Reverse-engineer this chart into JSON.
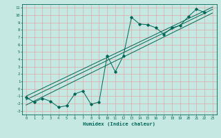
{
  "xlabel": "Humidex (Indice chaleur)",
  "bg_color": "#c5e8e3",
  "grid_color": "#dfa8a8",
  "line_color": "#006655",
  "xlim": [
    -0.5,
    23.5
  ],
  "ylim": [
    -3.5,
    11.5
  ],
  "xticks": [
    0,
    1,
    2,
    3,
    4,
    5,
    6,
    7,
    8,
    9,
    10,
    11,
    12,
    13,
    14,
    15,
    16,
    17,
    18,
    19,
    20,
    21,
    22,
    23
  ],
  "yticks": [
    -3,
    -2,
    -1,
    0,
    1,
    2,
    3,
    4,
    5,
    6,
    7,
    8,
    9,
    10,
    11
  ],
  "data_x": [
    0,
    1,
    2,
    3,
    4,
    5,
    6,
    7,
    8,
    9,
    10,
    11,
    12,
    13,
    14,
    15,
    16,
    17,
    18,
    19,
    20,
    21,
    22
  ],
  "data_y": [
    -1.2,
    -1.8,
    -1.3,
    -1.7,
    -2.5,
    -2.3,
    -0.7,
    -0.3,
    -2.1,
    -1.8,
    4.5,
    2.3,
    4.5,
    9.7,
    8.8,
    8.7,
    8.3,
    7.4,
    8.3,
    8.6,
    9.8,
    10.8,
    10.4
  ],
  "line1": {
    "x": [
      0,
      23
    ],
    "y": [
      -2.2,
      10.3
    ]
  },
  "line2": {
    "x": [
      0,
      23
    ],
    "y": [
      -1.5,
      10.8
    ]
  },
  "line3": {
    "x": [
      0,
      23
    ],
    "y": [
      -1.0,
      11.1
    ]
  }
}
